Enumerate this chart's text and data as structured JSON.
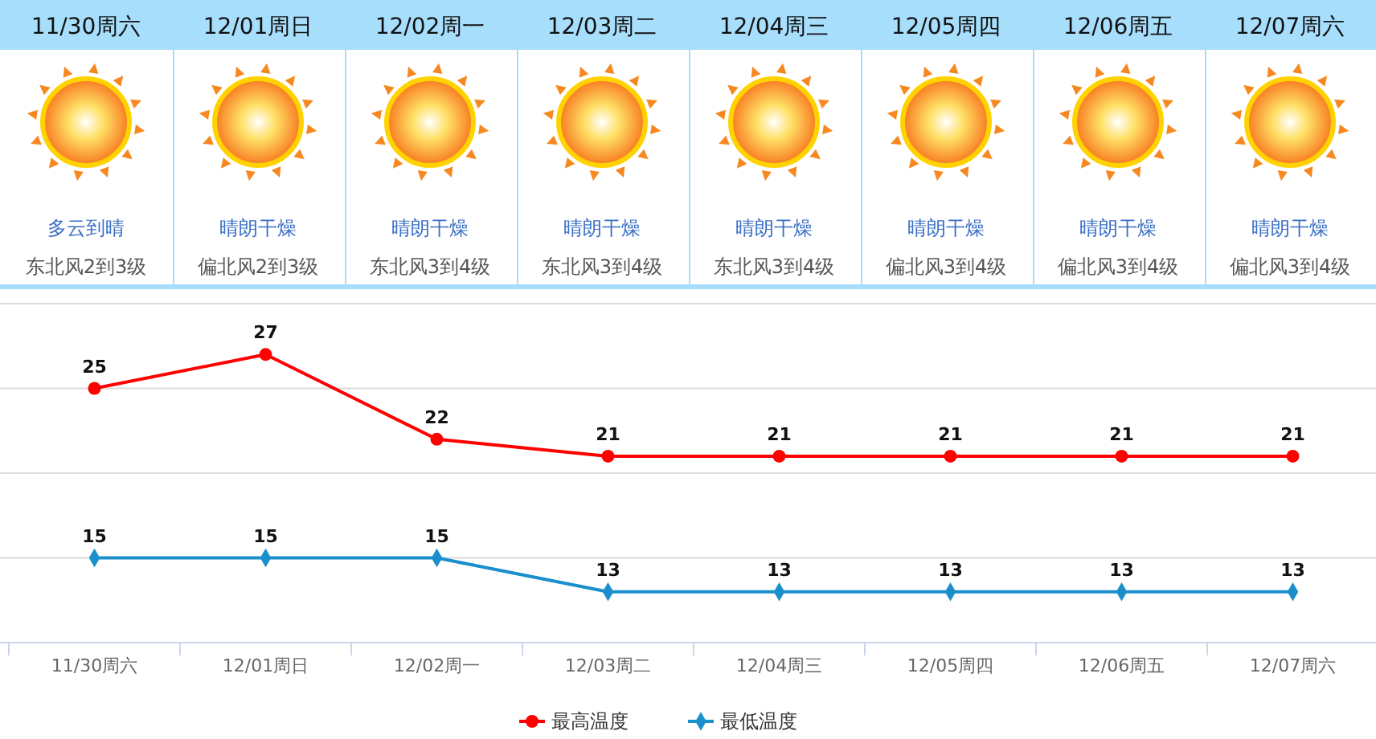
{
  "chart_data": [
    {
      "type": "other",
      "categories": [
        "11/30周六",
        "12/01周日",
        "12/02周一",
        "12/03周二",
        "12/04周三",
        "12/05周四",
        "12/06周五",
        "12/07周六"
      ],
      "annotations": [
        "多云到晴",
        "晴朗干燥",
        "晴朗干燥",
        "晴朗干燥",
        "晴朗干燥",
        "晴朗干燥",
        "晴朗干燥",
        "晴朗干燥",
        "东北风2到3级",
        "偏北风2到3级",
        "东北风3到4级",
        "东北风3到4级",
        "东北风3到4级",
        "偏北风3到4级",
        "偏北风3到4级",
        "偏北风3到4级"
      ]
    },
    {
      "type": "line",
      "categories": [
        "11/30周六",
        "12/01周日",
        "12/02周一",
        "12/03周二",
        "12/04周三",
        "12/05周四",
        "12/06周五",
        "12/07周六"
      ],
      "ylim": [
        10,
        30
      ],
      "yticks": [
        {
          "value": 10,
          "label": null
        },
        {
          "value": 15,
          "label": null
        },
        {
          "value": 20,
          "label": null
        },
        {
          "value": 25,
          "label": null
        },
        {
          "value": 30,
          "label": null
        }
      ],
      "tick_labels": "x",
      "grid": "y",
      "legend": "bottom",
      "data_labels": true,
      "series": [
        {
          "name": "最高温度",
          "color": "#ff0000",
          "marker": "circle",
          "values": [
            25,
            27,
            22,
            21,
            21,
            21,
            21,
            21
          ]
        },
        {
          "name": "最低温度",
          "color": "#1a8fcc",
          "marker": "diamond",
          "values": [
            15,
            15,
            15,
            13,
            13,
            13,
            13,
            13
          ]
        }
      ]
    }
  ]
}
